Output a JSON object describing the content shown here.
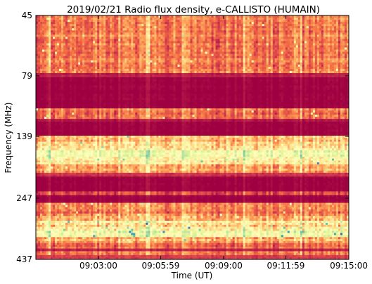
{
  "chart_data": {
    "type": "heatmap",
    "title": "2019/02/21  Radio flux density, e-CALLISTO (HUMAIN)",
    "xlabel": "Time (UT)",
    "ylabel": "Frequency (MHz)",
    "x_ticks": [
      "09:03:00",
      "09:05:59",
      "09:09:00",
      "09:11:59",
      "09:15:00"
    ],
    "y_ticks": [
      "45",
      "79",
      "139",
      "247",
      "437"
    ],
    "y_scale": "log",
    "ylim": [
      45,
      437
    ],
    "xlim": [
      "09:00:00",
      "09:15:00"
    ],
    "colormap": "Spectral_r",
    "bands": [
      {
        "f_start": 45,
        "f_end": 77,
        "level": 0.22,
        "var": 0.13
      },
      {
        "f_start": 77,
        "f_end": 80,
        "level": 0.05,
        "var": 0.03
      },
      {
        "f_start": 80,
        "f_end": 107,
        "level": 0.0,
        "var": 0.02
      },
      {
        "f_start": 107,
        "f_end": 118,
        "level": 0.2,
        "var": 0.12
      },
      {
        "f_start": 118,
        "f_end": 121,
        "level": 0.04,
        "var": 0.03
      },
      {
        "f_start": 121,
        "f_end": 138,
        "level": 0.0,
        "var": 0.02
      },
      {
        "f_start": 138,
        "f_end": 146,
        "level": 0.32,
        "var": 0.15
      },
      {
        "f_start": 146,
        "f_end": 158,
        "level": 0.42,
        "var": 0.2
      },
      {
        "f_start": 158,
        "f_end": 168,
        "level": 0.55,
        "var": 0.08
      },
      {
        "f_start": 168,
        "f_end": 180,
        "level": 0.46,
        "var": 0.18
      },
      {
        "f_start": 180,
        "f_end": 195,
        "level": 0.3,
        "var": 0.15
      },
      {
        "f_start": 195,
        "f_end": 202,
        "level": 0.08,
        "var": 0.05
      },
      {
        "f_start": 202,
        "f_end": 232,
        "level": 0.0,
        "var": 0.02
      },
      {
        "f_start": 232,
        "f_end": 240,
        "level": 0.12,
        "var": 0.06
      },
      {
        "f_start": 240,
        "f_end": 258,
        "level": 0.0,
        "var": 0.02
      },
      {
        "f_start": 258,
        "f_end": 285,
        "level": 0.22,
        "var": 0.14
      },
      {
        "f_start": 285,
        "f_end": 305,
        "level": 0.3,
        "var": 0.18
      },
      {
        "f_start": 305,
        "f_end": 335,
        "level": 0.42,
        "var": 0.22
      },
      {
        "f_start": 335,
        "f_end": 355,
        "level": 0.55,
        "var": 0.12
      },
      {
        "f_start": 355,
        "f_end": 375,
        "level": 0.3,
        "var": 0.16
      },
      {
        "f_start": 375,
        "f_end": 395,
        "level": 0.18,
        "var": 0.1
      },
      {
        "f_start": 395,
        "f_end": 405,
        "level": 0.05,
        "var": 0.03
      },
      {
        "f_start": 405,
        "f_end": 420,
        "level": 0.2,
        "var": 0.1
      },
      {
        "f_start": 420,
        "f_end": 437,
        "level": 0.1,
        "var": 0.05
      }
    ],
    "grid": false,
    "legend": "none"
  }
}
